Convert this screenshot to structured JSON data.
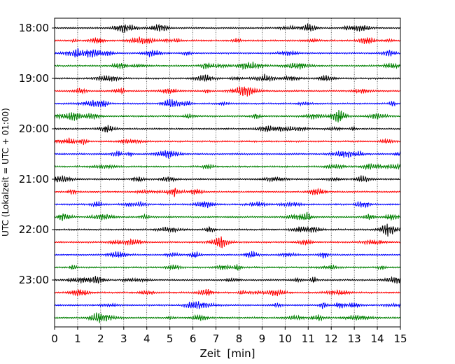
{
  "chart_data": {
    "type": "line",
    "title": "",
    "xlabel": "Zeit  [min]",
    "ylabel": "UTC (Lokalzeit = UTC + 01:00)",
    "xlim": [
      0,
      15
    ],
    "x_ticks": [
      0,
      1,
      2,
      3,
      4,
      5,
      6,
      7,
      8,
      9,
      10,
      11,
      12,
      13,
      14,
      15
    ],
    "x_tick_labels": [
      "0",
      "1",
      "2",
      "3",
      "4",
      "5",
      "6",
      "7",
      "8",
      "9",
      "10",
      "11",
      "12",
      "13",
      "14",
      "15"
    ],
    "y_tick_labels": [
      "18:00",
      "19:00",
      "20:00",
      "21:00",
      "22:00",
      "23:00"
    ],
    "y_tick_rows": [
      0,
      4,
      8,
      12,
      16,
      20
    ],
    "row_count": 24,
    "minutes_per_row": 15,
    "vertical_grid": true,
    "grid_style": "dotted",
    "legend": "none",
    "series_colors": [
      "#000000",
      "#ff0000",
      "#0000ff",
      "#008000"
    ]
  }
}
